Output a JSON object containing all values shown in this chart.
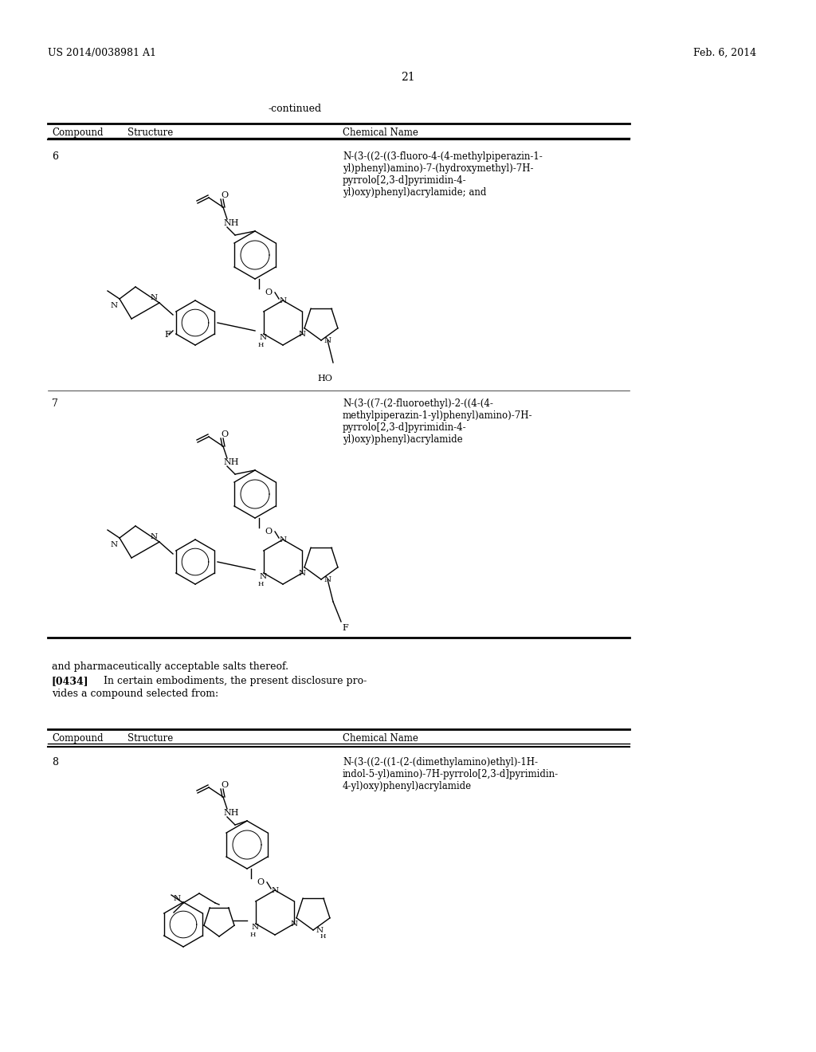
{
  "page_number": "21",
  "patent_number": "US 2014/0038981 A1",
  "patent_date": "Feb. 6, 2014",
  "continued_label": "-continued",
  "bg_color": "#ffffff",
  "text_color": "#000000",
  "table1": {
    "headers": [
      "Compound",
      "Structure",
      "Chemical Name"
    ],
    "rows": [
      {
        "compound": "6",
        "chemical_name": "N-(3-((2-((3-fluoro-4-(4-methylpiperazin-1-\nyl)phenyl)amino)-7-(hydroxymethyl)-7H-\npyrrolo[2,3-d]pyrimidin-4-\nyl)oxy)phenyl)acrylamide; and"
      },
      {
        "compound": "7",
        "chemical_name": "N-(3-((7-(2-fluoroethyl)-2-((4-(4-\nmethylpiperazin-1-yl)phenyl)amino)-7H-\npyrrolo[2,3-d]pyrimidin-4-\nyl)oxy)phenyl)acrylamide"
      }
    ]
  },
  "paragraph_text": "and pharmaceutically acceptable salts thereof.",
  "paragraph_ref": "[0434]",
  "paragraph_body": "   In certain embodiments, the present disclosure pro-\nvides a compound selected from:",
  "table2": {
    "headers": [
      "Compound",
      "Structure",
      "Chemical Name"
    ],
    "rows": [
      {
        "compound": "8",
        "chemical_name": "N-(3-((2-((1-(2-(dimethylamino)ethyl)-1H-\nindol-5-yl)amino)-7H-pyrrolo[2,3-d]pyrimidin-\n4-yl)oxy)phenyl)acrylamide"
      }
    ]
  }
}
